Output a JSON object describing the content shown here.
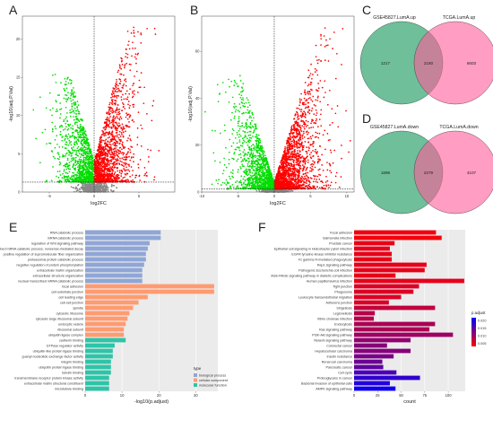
{
  "panel_letters": {
    "a": "A",
    "b": "B",
    "c": "C",
    "d": "D",
    "e": "E",
    "f": "F"
  },
  "colors": {
    "up": "#ff0000",
    "down": "#00dd00",
    "ns": "#888888",
    "bp": "#8fa6d6",
    "cc": "#ff9b70",
    "mf": "#2ec4a8",
    "venn_left": "#3daa78",
    "venn_right": "#ff5b9a"
  },
  "chart_data": [
    {
      "type": "scatter",
      "panel": "A",
      "xlabel": "log2FC",
      "ylabel": "-log10(adj.P.Val)",
      "xlim": [
        -8,
        9
      ],
      "ylim": [
        0,
        23
      ],
      "xticks": [
        -5,
        0,
        5
      ],
      "yticks": [
        0,
        5,
        10,
        15,
        20
      ],
      "logfc_cutoff": 0,
      "p_cutoff": 1.3,
      "seed": 11,
      "n_up": 1500,
      "n_down": 1100,
      "n_ns": 500,
      "max_y": 22,
      "spread_up": 2.2,
      "spread_down": 2.0
    },
    {
      "type": "scatter",
      "panel": "B",
      "xlabel": "log2FC",
      "ylabel": "-log10(adj.P.Val)",
      "xlim": [
        -10,
        11
      ],
      "ylim": [
        0,
        75
      ],
      "xticks": [
        -10,
        -5,
        0,
        5,
        10
      ],
      "yticks": [
        0,
        20,
        40,
        60
      ],
      "logfc_cutoff": 0,
      "p_cutoff": 1.3,
      "seed": 29,
      "n_up": 1900,
      "n_down": 1300,
      "n_ns": 500,
      "max_y": 72,
      "spread_up": 3.2,
      "spread_down": 2.8
    },
    {
      "type": "venn",
      "panel": "C",
      "left_label": "GSE45827.LumA.up",
      "right_label": "TCGA.LumA.up",
      "left_only": "1217",
      "overlap": "2180",
      "right_only": "6603"
    },
    {
      "type": "venn",
      "panel": "D",
      "left_label": "GSE45827.LumA.down",
      "right_label": "TCGA.LumA.down",
      "left_only": "1898",
      "overlap": "2279",
      "right_only": "4107"
    },
    {
      "type": "bar",
      "panel": "E",
      "orientation": "horizontal",
      "xlabel": "-log10(p.adjust)",
      "xlim": [
        0,
        36
      ],
      "xticks": [
        0,
        10,
        20,
        30
      ],
      "legend_title": "type",
      "legend": [
        {
          "key": "bp",
          "label": "biological process"
        },
        {
          "key": "cc",
          "label": "cellular component"
        },
        {
          "key": "mf",
          "label": "molecular function"
        }
      ],
      "categories": [
        "RNA catabolic process",
        "mRNA catabolic process",
        "regulation of Wnt signaling pathway",
        "nuclear-transcribed mRNA catabolic process, nonsense-mediated decay",
        "positive regulation of supramolecular fiber organization",
        "proteasomal protein catabolic process",
        "negative regulation of protein phosphorylation",
        "extracellular matrix organization",
        "extracellular structure organization",
        "nuclear-transcribed mRNA catabolic process",
        "focal adhesion",
        "cell-substrate junction",
        "cell leading edge",
        "cell-cell junction",
        "spindle",
        "cytosolic ribosome",
        "cytosolic large ribosomal subunit",
        "endocytic vesicle",
        "ribosomal subunit",
        "ubiquitin ligase complex",
        "cadherin binding",
        "GTPase regulator activity",
        "ubiquitin-like protein ligase binding",
        "guanyl-nucleotide exchange factor activity",
        "integrin binding",
        "ubiquitin protein ligase binding",
        "tubulin binding",
        "transmembrane receptor protein kinase activity",
        "extracellular matrix structural constituent",
        "microtubule binding"
      ],
      "values": [
        20.5,
        20.5,
        17.5,
        17.0,
        16.5,
        16.5,
        16.0,
        15.5,
        15.5,
        15.5,
        35.0,
        35.0,
        17.0,
        14.5,
        13.0,
        12.0,
        11.5,
        11.0,
        10.5,
        10.5,
        11.0,
        8.0,
        7.5,
        7.5,
        7.0,
        7.0,
        7.0,
        6.5,
        6.5,
        6.5
      ],
      "groups": [
        "bp",
        "bp",
        "bp",
        "bp",
        "bp",
        "bp",
        "bp",
        "bp",
        "bp",
        "bp",
        "cc",
        "cc",
        "cc",
        "cc",
        "cc",
        "cc",
        "cc",
        "cc",
        "cc",
        "cc",
        "mf",
        "mf",
        "mf",
        "mf",
        "mf",
        "mf",
        "mf",
        "mf",
        "mf",
        "mf"
      ]
    },
    {
      "type": "bar",
      "panel": "F",
      "orientation": "horizontal",
      "xlabel": "count",
      "xlim": [
        0,
        118
      ],
      "xticks": [
        0,
        25,
        50,
        75,
        100
      ],
      "legend_title": "p.adjust",
      "legend_ticks": [
        "0.020",
        "0.015",
        "0.010",
        "0.005"
      ],
      "color_low": "#ff0000",
      "color_high": "#0000ff",
      "categories": [
        "Focal adhesion",
        "Salmonella infection",
        "Prostate cancer",
        "Epithelial cell signaling in Helicobacter pylori infection",
        "EGFR tyrosine kinase inhibitor resistance",
        "Fc gamma R-mediated phagocytosis",
        "Rap1 signaling pathway",
        "Pathogenic Escherichia coli infection",
        "AGE-RAGE signaling pathway in diabetic complications",
        "Human papillomavirus infection",
        "Tight junction",
        "Phagosome",
        "Leukocyte transendothelial migration",
        "Adherens junction",
        "Shigellosis",
        "Legionellosis",
        "Vibrio cholerae infection",
        "Endocytosis",
        "Ras signaling pathway",
        "PI3K-Akt signaling pathway",
        "Relaxin signaling pathway",
        "Colorectal cancer",
        "Hepatocellular carcinoma",
        "Insulin resistance",
        "Renal cell carcinoma",
        "Pancreatic cancer",
        "Cell cycle",
        "Proteoglycans in cancer",
        "Bacterial invasion of epithelial cells",
        "AMPK signaling pathway"
      ],
      "values": [
        87,
        93,
        43,
        38,
        40,
        40,
        77,
        75,
        44,
        117,
        69,
        63,
        50,
        37,
        86,
        22,
        21,
        86,
        80,
        105,
        60,
        35,
        60,
        42,
        30,
        31,
        45,
        70,
        38,
        44
      ],
      "padj": [
        0.001,
        0.001,
        0.002,
        0.002,
        0.002,
        0.002,
        0.002,
        0.002,
        0.002,
        0.002,
        0.003,
        0.003,
        0.003,
        0.003,
        0.005,
        0.006,
        0.006,
        0.007,
        0.007,
        0.008,
        0.009,
        0.01,
        0.01,
        0.011,
        0.012,
        0.013,
        0.015,
        0.017,
        0.018,
        0.02
      ]
    }
  ]
}
